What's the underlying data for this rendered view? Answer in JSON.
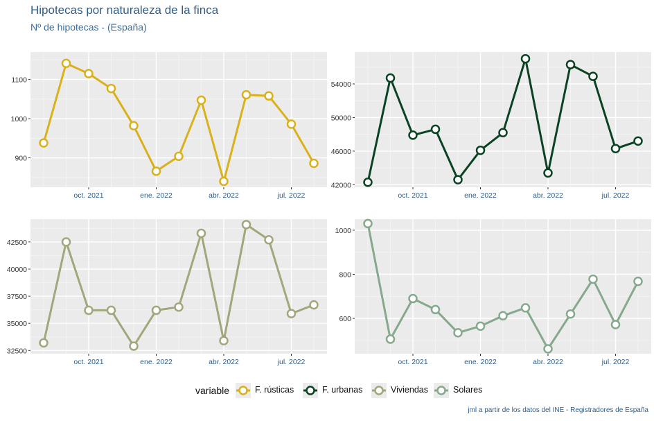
{
  "header": {
    "title": "Hipotecas por naturaleza de la finca",
    "subtitle": "Nº de hipotecas - (España)"
  },
  "legend": {
    "title": "variable",
    "items": [
      {
        "label": "F. rústicas",
        "color": "#d9b11b"
      },
      {
        "label": "F. urbanas",
        "color": "#0b4223"
      },
      {
        "label": "Viviendas",
        "color": "#a3a67a"
      },
      {
        "label": "Solares",
        "color": "#86a88d"
      }
    ]
  },
  "caption": "jml a partir de los datos del INE - Registradores de España",
  "chart_data": [
    {
      "type": "line",
      "series_name": "F. rústicas",
      "color": "#d9b11b",
      "x": [
        "2021-08",
        "2021-09",
        "2021-10",
        "2021-11",
        "2021-12",
        "2022-01",
        "2022-02",
        "2022-03",
        "2022-04",
        "2022-05",
        "2022-06",
        "2022-07",
        "2022-08"
      ],
      "values": [
        938,
        1141,
        1115,
        1077,
        982,
        866,
        904,
        1047,
        840,
        1061,
        1058,
        986,
        886
      ],
      "ylim": [
        825,
        1170
      ],
      "yticks": [
        900,
        1000,
        1100
      ],
      "ytick_labels": [
        "900",
        "1000",
        "1100"
      ],
      "xticks": [
        "oct. 2021",
        "ene. 2022",
        "abr. 2022",
        "jul. 2022"
      ]
    },
    {
      "type": "line",
      "series_name": "F. urbanas",
      "color": "#0b4223",
      "x": [
        "2021-08",
        "2021-09",
        "2021-10",
        "2021-11",
        "2021-12",
        "2022-01",
        "2022-02",
        "2022-03",
        "2022-04",
        "2022-05",
        "2022-06",
        "2022-07",
        "2022-08"
      ],
      "values": [
        42300,
        54700,
        47900,
        48600,
        42600,
        46100,
        48200,
        57000,
        43400,
        56300,
        54900,
        46300,
        47200
      ],
      "ylim": [
        41700,
        57800
      ],
      "yticks": [
        42000,
        46000,
        50000,
        54000
      ],
      "ytick_labels": [
        "42000",
        "46000",
        "50000",
        "54000"
      ],
      "xticks": [
        "oct. 2021",
        "ene. 2022",
        "abr. 2022",
        "jul. 2022"
      ]
    },
    {
      "type": "line",
      "series_name": "Viviendas",
      "color": "#a3a67a",
      "x": [
        "2021-08",
        "2021-09",
        "2021-10",
        "2021-11",
        "2021-12",
        "2022-01",
        "2022-02",
        "2022-03",
        "2022-04",
        "2022-05",
        "2022-06",
        "2022-07",
        "2022-08"
      ],
      "values": [
        33200,
        42500,
        36200,
        36200,
        32900,
        36200,
        36500,
        43300,
        33400,
        44100,
        42700,
        35900,
        36700
      ],
      "ylim": [
        32200,
        44600
      ],
      "yticks": [
        32500,
        35000,
        37500,
        40000,
        42500
      ],
      "ytick_labels": [
        "32500",
        "35000",
        "37500",
        "40000",
        "42500"
      ],
      "xticks": [
        "oct. 2021",
        "ene. 2022",
        "abr. 2022",
        "jul. 2022"
      ]
    },
    {
      "type": "line",
      "series_name": "Solares",
      "color": "#86a88d",
      "x": [
        "2021-08",
        "2021-09",
        "2021-10",
        "2021-11",
        "2021-12",
        "2022-01",
        "2022-02",
        "2022-03",
        "2022-04",
        "2022-05",
        "2022-06",
        "2022-07",
        "2022-08"
      ],
      "values": [
        1030,
        506,
        690,
        640,
        535,
        565,
        612,
        648,
        462,
        620,
        778,
        572,
        768
      ],
      "ylim": [
        440,
        1050
      ],
      "yticks": [
        600,
        800,
        1000
      ],
      "ytick_labels": [
        "600",
        "800",
        "1000"
      ],
      "xticks": [
        "oct. 2021",
        "ene. 2022",
        "abr. 2022",
        "jul. 2022"
      ]
    }
  ]
}
